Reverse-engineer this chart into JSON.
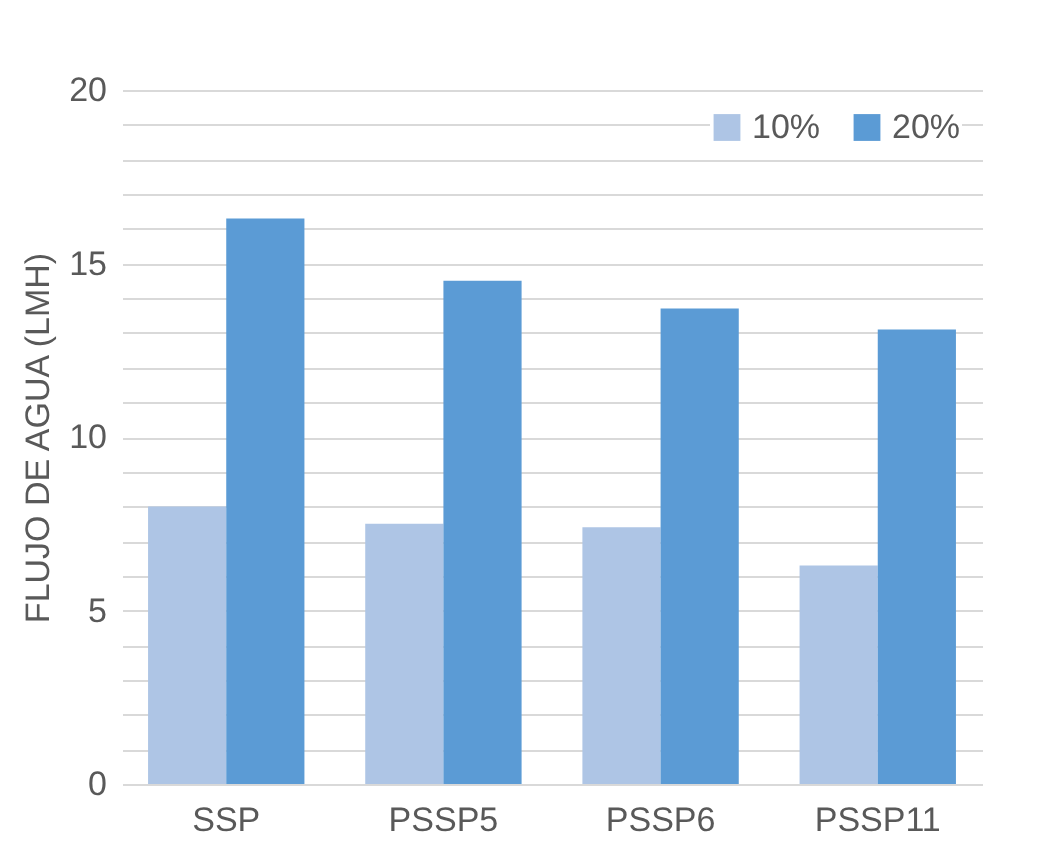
{
  "chart_data": {
    "type": "bar",
    "ylabel": "FLUJO DE AGUA (LMH)",
    "categories": [
      "SSP",
      "PSSP5",
      "PSSP6",
      "PSSP11"
    ],
    "series": [
      {
        "name": "10%",
        "color": "#aec5e5",
        "values": [
          8.0,
          7.5,
          7.4,
          6.3
        ]
      },
      {
        "name": "20%",
        "color": "#5b9bd5",
        "values": [
          16.3,
          14.5,
          13.7,
          13.1
        ]
      }
    ],
    "ylim": [
      0,
      20
    ],
    "yticks": [
      0,
      {
        "value": 1,
        "label": null
      },
      {
        "value": 2,
        "label": null
      },
      {
        "value": 3,
        "label": null
      },
      {
        "value": 4,
        "label": null
      },
      5,
      {
        "value": 6,
        "label": null
      },
      {
        "value": 7,
        "label": null
      },
      {
        "value": 8,
        "label": null
      },
      {
        "value": 9,
        "label": null
      },
      10,
      {
        "value": 11,
        "label": null
      },
      {
        "value": 12,
        "label": null
      },
      {
        "value": 13,
        "label": null
      },
      {
        "value": 14,
        "label": null
      },
      15,
      {
        "value": 16,
        "label": null
      },
      {
        "value": 17,
        "label": null
      },
      {
        "value": 18,
        "label": null
      },
      {
        "value": 19,
        "label": null
      },
      20
    ],
    "grid": true,
    "legend": "top right"
  }
}
